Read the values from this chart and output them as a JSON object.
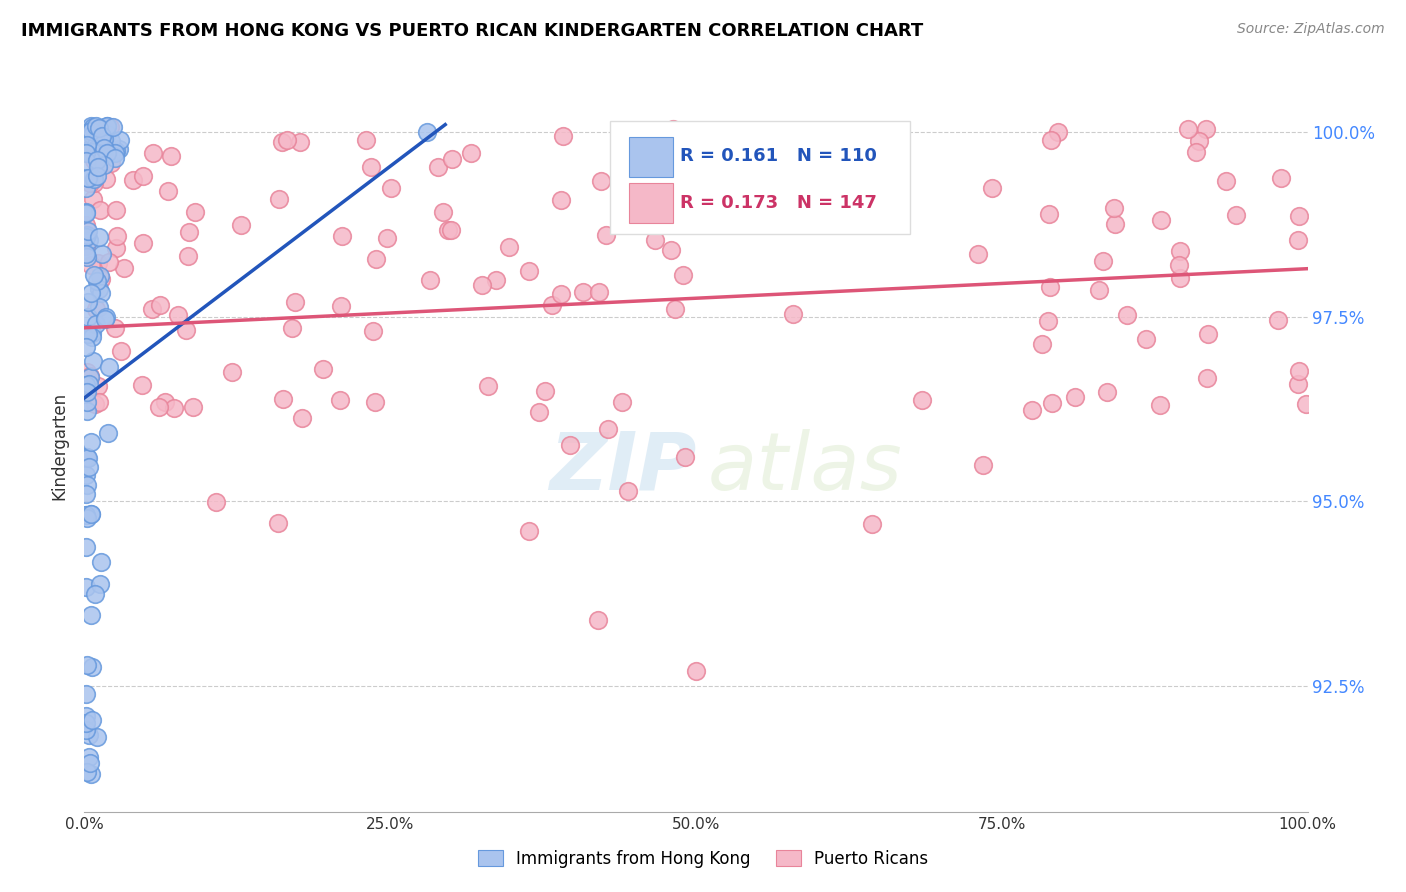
{
  "title": "IMMIGRANTS FROM HONG KONG VS PUERTO RICAN KINDERGARTEN CORRELATION CHART",
  "source": "Source: ZipAtlas.com",
  "ylabel": "Kindergarten",
  "ytick_labels": [
    "92.5%",
    "95.0%",
    "97.5%",
    "100.0%"
  ],
  "ytick_values": [
    0.925,
    0.95,
    0.975,
    1.0
  ],
  "xlim": [
    0.0,
    1.0
  ],
  "ylim": [
    0.908,
    1.007
  ],
  "legend_blue_R": "0.161",
  "legend_blue_N": "110",
  "legend_pink_R": "0.173",
  "legend_pink_N": "147",
  "legend_label_blue": "Immigrants from Hong Kong",
  "legend_label_pink": "Puerto Ricans",
  "blue_color": "#aac4ee",
  "blue_edge_color": "#6699dd",
  "pink_color": "#f5b8c8",
  "pink_edge_color": "#e8849a",
  "blue_line_color": "#2255bb",
  "pink_line_color": "#dd5577",
  "background_color": "#ffffff",
  "watermark_zip": "ZIP",
  "watermark_atlas": "atlas",
  "grid_color": "#cccccc",
  "xtick_positions": [
    0.0,
    0.25,
    0.5,
    0.75,
    1.0
  ],
  "xtick_labels": [
    "0.0%",
    "25.0%",
    "50.0%",
    "75.0%",
    "100.0%"
  ],
  "blue_trend_x0": 0.0,
  "blue_trend_x1": 0.295,
  "blue_trend_y0": 0.964,
  "blue_trend_y1": 1.001,
  "pink_trend_x0": 0.0,
  "pink_trend_x1": 1.0,
  "pink_trend_y0": 0.9735,
  "pink_trend_y1": 0.9815
}
